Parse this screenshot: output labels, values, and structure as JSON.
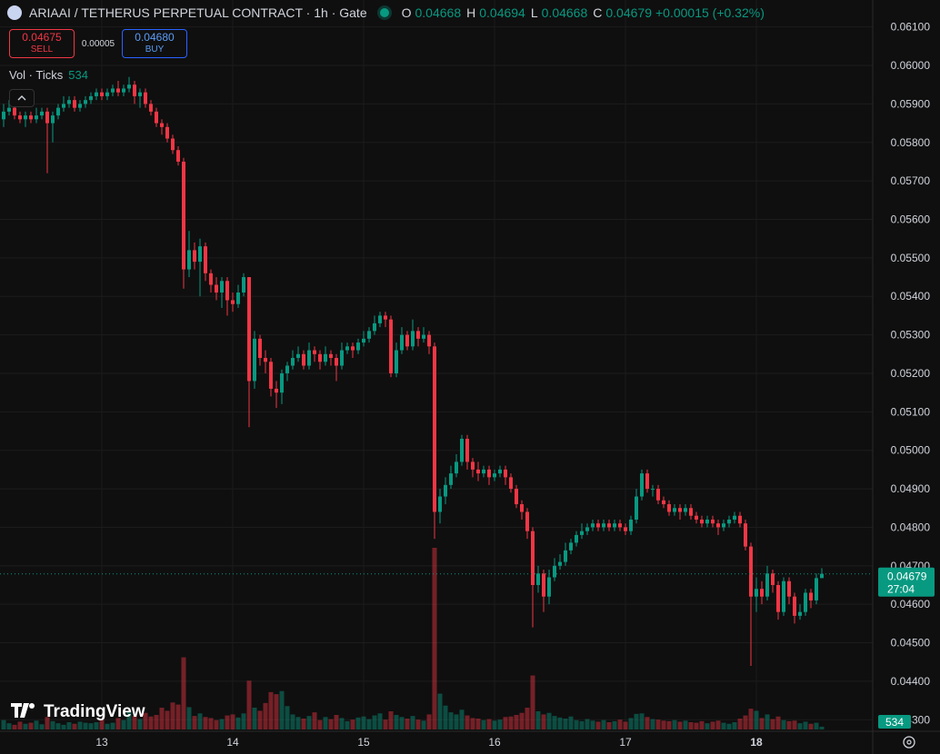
{
  "chart_data": {
    "type": "candlestick",
    "title": "ARIAAI / TETHERUS PERPETUAL CONTRACT · 1h · Gate",
    "up_color": "#089981",
    "down_color": "#f23645",
    "grid": true,
    "xlim": [
      -0.667,
      159.333
    ],
    "xticks": [
      {
        "value": 18,
        "label": "13"
      },
      {
        "value": 42,
        "label": "14"
      },
      {
        "value": 66,
        "label": "15"
      },
      {
        "value": 90,
        "label": "16"
      },
      {
        "value": 114,
        "label": "17"
      },
      {
        "value": 138,
        "label": "18"
      }
    ],
    "ylim": [
      0.0427,
      0.0617
    ],
    "yticks": [
      {
        "value": 0.043,
        "label": "0.04300"
      },
      {
        "value": 0.044,
        "label": "0.04400"
      },
      {
        "value": 0.045,
        "label": "0.04500"
      },
      {
        "value": 0.046,
        "label": "0.04600"
      },
      {
        "value": 0.047,
        "label": "0.04700"
      },
      {
        "value": 0.048,
        "label": "0.04800"
      },
      {
        "value": 0.049,
        "label": "0.04900"
      },
      {
        "value": 0.05,
        "label": "0.05000"
      },
      {
        "value": 0.051,
        "label": "0.05100"
      },
      {
        "value": 0.052,
        "label": "0.05200"
      },
      {
        "value": 0.053,
        "label": "0.05300"
      },
      {
        "value": 0.054,
        "label": "0.05400"
      },
      {
        "value": 0.055,
        "label": "0.05500"
      },
      {
        "value": 0.056,
        "label": "0.05600"
      },
      {
        "value": 0.057,
        "label": "0.05700"
      },
      {
        "value": 0.058,
        "label": "0.05800"
      },
      {
        "value": 0.059,
        "label": "0.05900"
      },
      {
        "value": 0.06,
        "label": "0.06000"
      },
      {
        "value": 0.061,
        "label": "0.06100"
      }
    ],
    "open": [
      0.0586,
      0.0588,
      0.0589,
      0.0587,
      0.0586,
      0.0587,
      0.0586,
      0.0587,
      0.0588,
      0.0585,
      0.0587,
      0.0589,
      0.059,
      0.0591,
      0.0589,
      0.059,
      0.0591,
      0.0592,
      0.0593,
      0.0592,
      0.0593,
      0.0594,
      0.0593,
      0.0594,
      0.0595,
      0.0592,
      0.0593,
      0.059,
      0.0588,
      0.0585,
      0.0584,
      0.0581,
      0.0578,
      0.0575,
      0.0547,
      0.0552,
      0.0549,
      0.0553,
      0.0546,
      0.0543,
      0.0541,
      0.0544,
      0.0539,
      0.0538,
      0.0541,
      0.0545,
      0.0518,
      0.0529,
      0.0524,
      0.0523,
      0.0516,
      0.0515,
      0.052,
      0.0522,
      0.0524,
      0.0525,
      0.0522,
      0.0526,
      0.0525,
      0.0523,
      0.0525,
      0.0524,
      0.0522,
      0.0526,
      0.0527,
      0.0526,
      0.0528,
      0.0529,
      0.0531,
      0.0533,
      0.0535,
      0.0534,
      0.052,
      0.0526,
      0.053,
      0.0527,
      0.0531,
      0.0529,
      0.053,
      0.0527,
      0.0484,
      0.0488,
      0.0491,
      0.0494,
      0.0497,
      0.0503,
      0.0497,
      0.0495,
      0.0494,
      0.0495,
      0.0493,
      0.0494,
      0.0495,
      0.0493,
      0.049,
      0.0486,
      0.0484,
      0.0479,
      0.0465,
      0.0468,
      0.0462,
      0.0467,
      0.047,
      0.0471,
      0.0474,
      0.0476,
      0.0478,
      0.0479,
      0.048,
      0.0481,
      0.048,
      0.0481,
      0.048,
      0.0481,
      0.048,
      0.0479,
      0.0482,
      0.0488,
      0.0494,
      0.049,
      0.049,
      0.0487,
      0.0486,
      0.0484,
      0.0485,
      0.0484,
      0.0485,
      0.0483,
      0.0482,
      0.0481,
      0.0482,
      0.0481,
      0.048,
      0.0481,
      0.0482,
      0.0483,
      0.0481,
      0.0475,
      0.0462,
      0.0464,
      0.0462,
      0.0468,
      0.0465,
      0.0458,
      0.0466,
      0.0462,
      0.0457,
      0.0458,
      0.0463,
      0.0461,
      0.04668
    ],
    "high": [
      0.059,
      0.0591,
      0.059,
      0.0588,
      0.0588,
      0.0588,
      0.0589,
      0.0589,
      0.0589,
      0.0588,
      0.059,
      0.0592,
      0.0592,
      0.0592,
      0.0591,
      0.0592,
      0.0593,
      0.0594,
      0.0594,
      0.0594,
      0.0595,
      0.0596,
      0.0595,
      0.0597,
      0.0596,
      0.0594,
      0.0594,
      0.0591,
      0.0589,
      0.0586,
      0.0585,
      0.0582,
      0.0579,
      0.0576,
      0.0557,
      0.0554,
      0.0555,
      0.0554,
      0.0547,
      0.0545,
      0.0545,
      0.0545,
      0.0541,
      0.0543,
      0.0546,
      0.0545,
      0.0531,
      0.053,
      0.0526,
      0.0524,
      0.0518,
      0.0521,
      0.0523,
      0.0526,
      0.0527,
      0.0526,
      0.0528,
      0.0527,
      0.0526,
      0.0527,
      0.0526,
      0.0525,
      0.0528,
      0.0528,
      0.0528,
      0.0529,
      0.0531,
      0.0532,
      0.0535,
      0.0536,
      0.0536,
      0.0535,
      0.0528,
      0.0532,
      0.0531,
      0.0534,
      0.0532,
      0.0532,
      0.0531,
      0.0528,
      0.049,
      0.0493,
      0.0496,
      0.0499,
      0.0504,
      0.0504,
      0.0498,
      0.0497,
      0.0496,
      0.0496,
      0.0495,
      0.0496,
      0.0496,
      0.0494,
      0.0491,
      0.0487,
      0.0485,
      0.048,
      0.047,
      0.0469,
      0.0469,
      0.0472,
      0.0473,
      0.0476,
      0.0477,
      0.0479,
      0.0481,
      0.0481,
      0.0482,
      0.0482,
      0.0482,
      0.0482,
      0.0482,
      0.0482,
      0.0481,
      0.0483,
      0.049,
      0.0495,
      0.0495,
      0.0491,
      0.0491,
      0.0488,
      0.0487,
      0.0486,
      0.0486,
      0.0486,
      0.0486,
      0.0484,
      0.0483,
      0.0483,
      0.0483,
      0.0482,
      0.0482,
      0.0483,
      0.0484,
      0.0484,
      0.0482,
      0.0476,
      0.0467,
      0.0466,
      0.047,
      0.0469,
      0.0466,
      0.0467,
      0.0467,
      0.0463,
      0.046,
      0.0464,
      0.0464,
      0.0468,
      0.04694
    ],
    "low": [
      0.0584,
      0.0587,
      0.0586,
      0.0585,
      0.0584,
      0.0585,
      0.0585,
      0.0586,
      0.0572,
      0.058,
      0.0586,
      0.0588,
      0.0589,
      0.0588,
      0.0588,
      0.0589,
      0.059,
      0.0591,
      0.0591,
      0.0591,
      0.0592,
      0.0592,
      0.0592,
      0.0593,
      0.059,
      0.0589,
      0.0589,
      0.0587,
      0.0584,
      0.0582,
      0.058,
      0.0577,
      0.0574,
      0.0542,
      0.0545,
      0.0547,
      0.054,
      0.0544,
      0.0541,
      0.0539,
      0.0537,
      0.0535,
      0.0536,
      0.0537,
      0.054,
      0.0506,
      0.0516,
      0.0522,
      0.052,
      0.0514,
      0.0511,
      0.0512,
      0.0518,
      0.0521,
      0.0523,
      0.0521,
      0.0521,
      0.0523,
      0.0521,
      0.0522,
      0.0522,
      0.0518,
      0.0521,
      0.0525,
      0.0524,
      0.0525,
      0.0527,
      0.0528,
      0.053,
      0.0532,
      0.0532,
      0.0519,
      0.0519,
      0.0525,
      0.0526,
      0.0526,
      0.0527,
      0.0528,
      0.0525,
      0.0477,
      0.0481,
      0.0486,
      0.049,
      0.0493,
      0.0496,
      0.0495,
      0.0493,
      0.0492,
      0.0493,
      0.0491,
      0.0492,
      0.0493,
      0.0491,
      0.0489,
      0.0485,
      0.0482,
      0.0477,
      0.0454,
      0.0463,
      0.0458,
      0.046,
      0.0466,
      0.0469,
      0.047,
      0.0473,
      0.0475,
      0.0477,
      0.0478,
      0.0479,
      0.0479,
      0.0479,
      0.0479,
      0.0479,
      0.0479,
      0.0478,
      0.0478,
      0.0481,
      0.0487,
      0.0489,
      0.0488,
      0.0486,
      0.0485,
      0.0483,
      0.0483,
      0.0482,
      0.0483,
      0.0482,
      0.0481,
      0.048,
      0.048,
      0.048,
      0.0478,
      0.0479,
      0.048,
      0.0481,
      0.048,
      0.0474,
      0.0444,
      0.0458,
      0.046,
      0.0461,
      0.0463,
      0.0456,
      0.0457,
      0.046,
      0.0455,
      0.0456,
      0.0457,
      0.0459,
      0.046,
      0.04668
    ],
    "close": [
      0.0588,
      0.0589,
      0.0587,
      0.0586,
      0.0587,
      0.0586,
      0.0587,
      0.0588,
      0.0585,
      0.0587,
      0.0589,
      0.059,
      0.0591,
      0.0589,
      0.059,
      0.0591,
      0.0592,
      0.0593,
      0.0592,
      0.0593,
      0.0594,
      0.0593,
      0.0594,
      0.0595,
      0.0592,
      0.0593,
      0.059,
      0.0588,
      0.0585,
      0.0584,
      0.0581,
      0.0578,
      0.0575,
      0.0547,
      0.0552,
      0.0549,
      0.0553,
      0.0546,
      0.0543,
      0.0541,
      0.0544,
      0.0539,
      0.0538,
      0.0541,
      0.0545,
      0.0518,
      0.0529,
      0.0524,
      0.0523,
      0.0516,
      0.0515,
      0.052,
      0.0522,
      0.0524,
      0.0525,
      0.0522,
      0.0526,
      0.0525,
      0.0523,
      0.0525,
      0.0524,
      0.0522,
      0.0526,
      0.0527,
      0.0526,
      0.0528,
      0.0529,
      0.0531,
      0.0533,
      0.0535,
      0.0534,
      0.052,
      0.0526,
      0.053,
      0.0527,
      0.0531,
      0.0529,
      0.053,
      0.0527,
      0.0484,
      0.0488,
      0.0491,
      0.0494,
      0.0497,
      0.0503,
      0.0497,
      0.0495,
      0.0494,
      0.0495,
      0.0493,
      0.0494,
      0.0495,
      0.0493,
      0.049,
      0.0486,
      0.0484,
      0.0479,
      0.0465,
      0.0468,
      0.0462,
      0.0467,
      0.047,
      0.0471,
      0.0474,
      0.0476,
      0.0478,
      0.0479,
      0.048,
      0.0481,
      0.048,
      0.0481,
      0.048,
      0.0481,
      0.048,
      0.0479,
      0.0482,
      0.0488,
      0.0494,
      0.049,
      0.049,
      0.0487,
      0.0486,
      0.0484,
      0.0485,
      0.0484,
      0.0485,
      0.0483,
      0.0482,
      0.0481,
      0.0482,
      0.0481,
      0.048,
      0.0481,
      0.0482,
      0.0483,
      0.0481,
      0.0475,
      0.0462,
      0.0464,
      0.0462,
      0.0468,
      0.0465,
      0.0458,
      0.0466,
      0.0462,
      0.0457,
      0.0458,
      0.0463,
      0.0461,
      0.04668,
      0.04679
    ],
    "volume": [
      1800,
      1200,
      900,
      1500,
      1100,
      1300,
      1700,
      1000,
      2400,
      1600,
      1200,
      900,
      1400,
      1100,
      1500,
      1300,
      1200,
      1400,
      1900,
      1100,
      1300,
      2200,
      1800,
      3400,
      2600,
      2000,
      3200,
      2500,
      2800,
      4200,
      3600,
      5200,
      4800,
      13900,
      4300,
      2600,
      3100,
      2400,
      2200,
      1800,
      2000,
      2700,
      2900,
      2300,
      3100,
      9400,
      4200,
      3600,
      5100,
      7200,
      6800,
      7400,
      4500,
      2900,
      2400,
      2100,
      2600,
      3300,
      1800,
      2400,
      2000,
      2800,
      2200,
      1600,
      1900,
      2300,
      2500,
      2000,
      2700,
      3100,
      1900,
      3500,
      2800,
      2400,
      2100,
      2600,
      1900,
      1700,
      2900,
      35000,
      6900,
      4600,
      3300,
      2900,
      3800,
      2700,
      2200,
      2100,
      1800,
      2000,
      1700,
      1900,
      2400,
      2500,
      2800,
      3200,
      4200,
      10400,
      3500,
      2900,
      3200,
      2600,
      2300,
      2100,
      2500,
      1800,
      1600,
      2000,
      1700,
      1500,
      1800,
      1400,
      1600,
      1900,
      1500,
      2200,
      3000,
      3100,
      2400,
      2000,
      1900,
      1700,
      1600,
      1800,
      1500,
      1700,
      1400,
      1300,
      1600,
      1200,
      1500,
      1700,
      1300,
      1100,
      1400,
      2100,
      2700,
      4000,
      3600,
      2200,
      2900,
      2000,
      2500,
      1800,
      1600,
      1700,
      1200,
      1500,
      1100,
      1300,
      534
    ]
  },
  "ui": {
    "ohlc_labels": [
      "O",
      "H",
      "L",
      "C"
    ],
    "change": "+0.00015 (+0.32%)",
    "sell_price": "0.04675",
    "sell_label": "SELL",
    "spread": "0.00005",
    "buy_price": "0.04680",
    "buy_label": "BUY",
    "volume_label": "Vol · Ticks",
    "countdown": "27:04",
    "logo_text": "TradingView"
  }
}
